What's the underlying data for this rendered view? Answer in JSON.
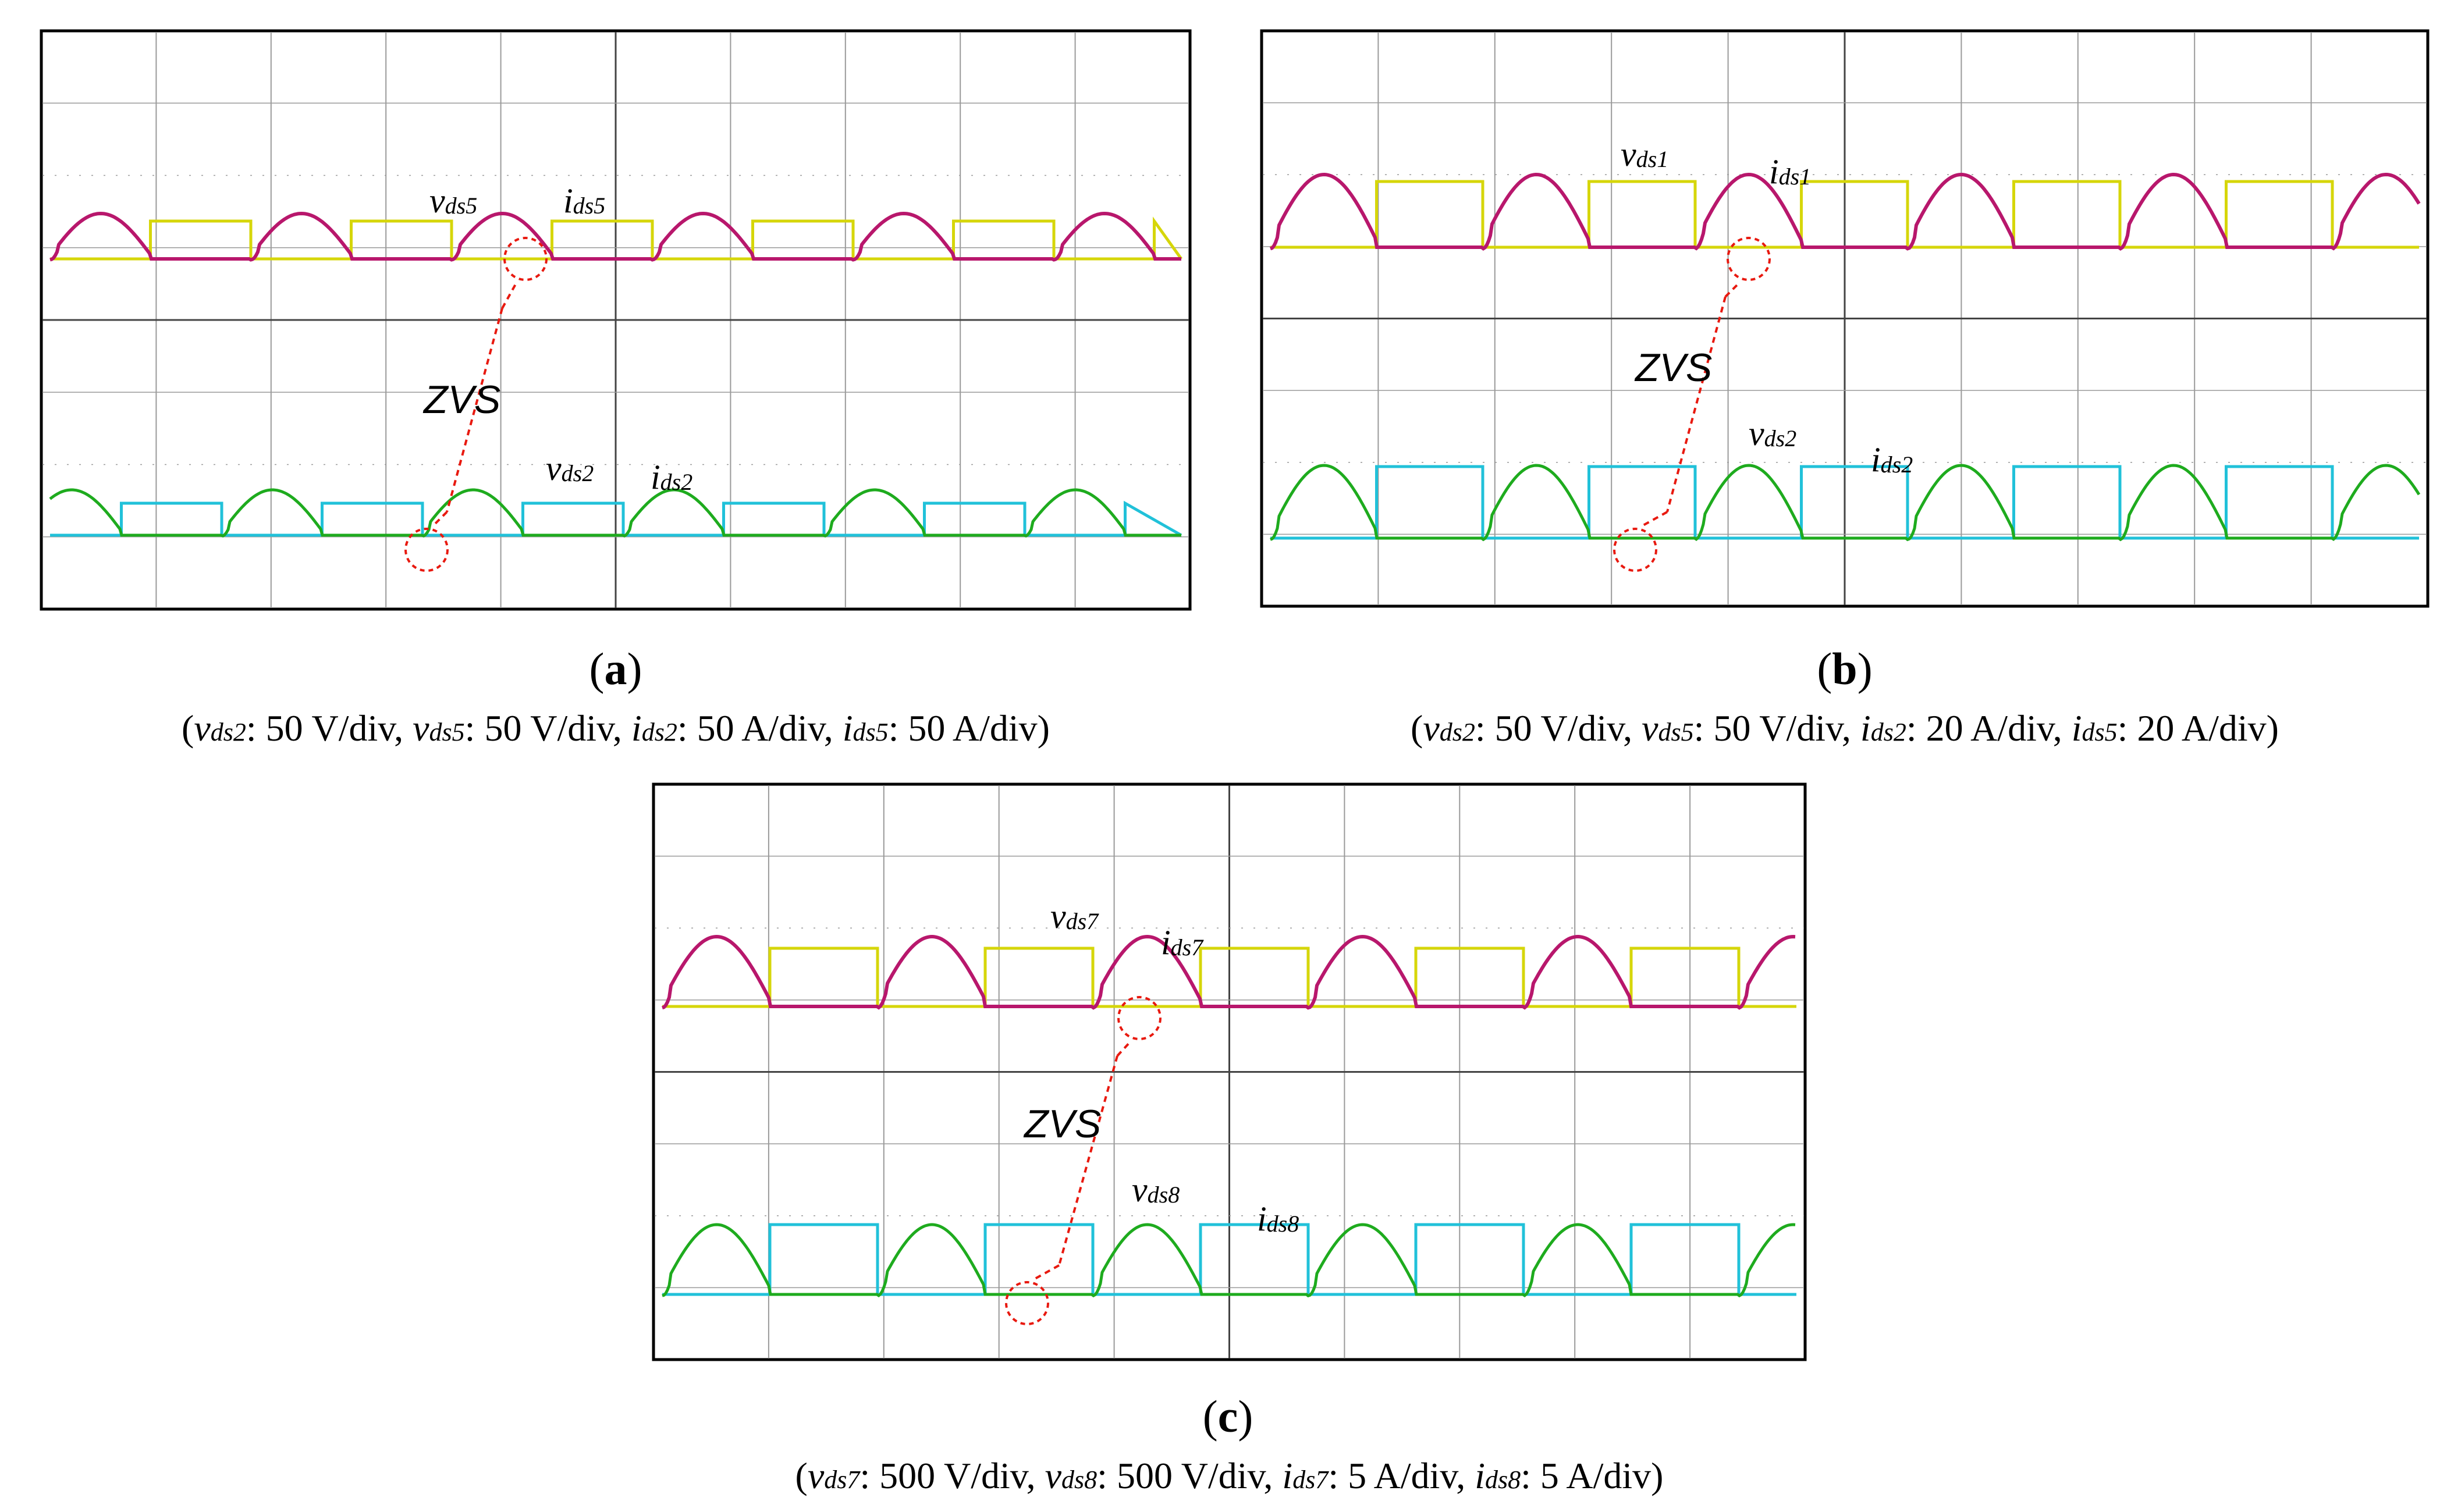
{
  "colors": {
    "v_upper": "#d6d60a",
    "i_upper": "#b8176c",
    "v_lower": "#21c1d9",
    "i_lower": "#1eab1e",
    "zvs": "#e8190f",
    "grid": "#9a9a9a"
  },
  "chart_data": [
    {
      "panel": "a",
      "type": "line",
      "title": "",
      "labels": {
        "v_upper": [
          "v",
          "ds5"
        ],
        "i_upper": [
          "i",
          "ds5"
        ],
        "v_lower": [
          "v",
          "ds2"
        ],
        "i_lower": [
          "i",
          "ds2"
        ],
        "zvs": "ZVS"
      },
      "caption": [
        {
          "sym": "v",
          "sub": "ds2",
          "text": ": 50 V/div, "
        },
        {
          "sym": "v",
          "sub": "ds5",
          "text": ": 50 V/div, "
        },
        {
          "sym": "i",
          "sub": "ds2",
          "text": ": 50 A/div, "
        },
        {
          "sym": "i",
          "sub": "ds5",
          "text": ": 50 A/div"
        }
      ],
      "grid": {
        "x_divisions": 10,
        "y_divisions": 8
      },
      "series": [
        {
          "name": "vds5",
          "values": [],
          "period_div": 1.75,
          "phase_div": 0.0,
          "duty": 0.5
        },
        {
          "name": "ids5",
          "values": [],
          "period_div": 1.75,
          "phase_div": 0.0
        },
        {
          "name": "vds2",
          "values": [],
          "period_div": 1.75,
          "phase_div": 0.85,
          "duty": 0.5
        },
        {
          "name": "ids2",
          "values": [],
          "period_div": 1.75,
          "phase_div": 0.85
        }
      ]
    },
    {
      "panel": "b",
      "type": "line",
      "title": "",
      "labels": {
        "v_upper": [
          "v",
          "ds1"
        ],
        "i_upper": [
          "i",
          "ds1"
        ],
        "v_lower": [
          "v",
          "ds2"
        ],
        "i_lower": [
          "i",
          "ds2"
        ],
        "zvs": "ZVS"
      },
      "caption": [
        {
          "sym": "v",
          "sub": "ds2",
          "text": ": 50 V/div, "
        },
        {
          "sym": "v",
          "sub": "ds5",
          "text": ": 50 V/div, "
        },
        {
          "sym": "i",
          "sub": "ds2",
          "text": ": 20 A/div, "
        },
        {
          "sym": "i",
          "sub": "ds5",
          "text": ": 20 A/div"
        }
      ],
      "grid": {
        "x_divisions": 10,
        "y_divisions": 8
      },
      "series": [
        {
          "name": "vds1",
          "values": [],
          "period_div": 1.83,
          "duty": 0.5
        },
        {
          "name": "ids1",
          "values": [],
          "period_div": 1.83
        },
        {
          "name": "vds2",
          "values": [],
          "period_div": 1.83,
          "duty": 0.5
        },
        {
          "name": "ids2",
          "values": [],
          "period_div": 1.83
        }
      ]
    },
    {
      "panel": "c",
      "type": "line",
      "title": "",
      "labels": {
        "v_upper": [
          "v",
          "ds7"
        ],
        "i_upper": [
          "i",
          "ds7"
        ],
        "v_lower": [
          "v",
          "ds8"
        ],
        "i_lower": [
          "i",
          "ds8"
        ],
        "zvs": "ZVS"
      },
      "caption": [
        {
          "sym": "v",
          "sub": "ds7",
          "text": ": 500 V/div, "
        },
        {
          "sym": "v",
          "sub": "ds8",
          "text": ": 500 V/div, "
        },
        {
          "sym": "i",
          "sub": "ds7",
          "text": ": 5 A/div, "
        },
        {
          "sym": "i",
          "sub": "ds8",
          "text": ": 5 A/div"
        }
      ],
      "grid": {
        "x_divisions": 10,
        "y_divisions": 8
      },
      "series": [
        {
          "name": "vds7",
          "values": [],
          "period_div": 1.87,
          "duty": 0.5
        },
        {
          "name": "ids7",
          "values": [],
          "period_div": 1.87
        },
        {
          "name": "vds8",
          "values": [],
          "period_div": 1.87,
          "duty": 0.5
        },
        {
          "name": "ids8",
          "values": [],
          "period_div": 1.87
        }
      ]
    }
  ]
}
